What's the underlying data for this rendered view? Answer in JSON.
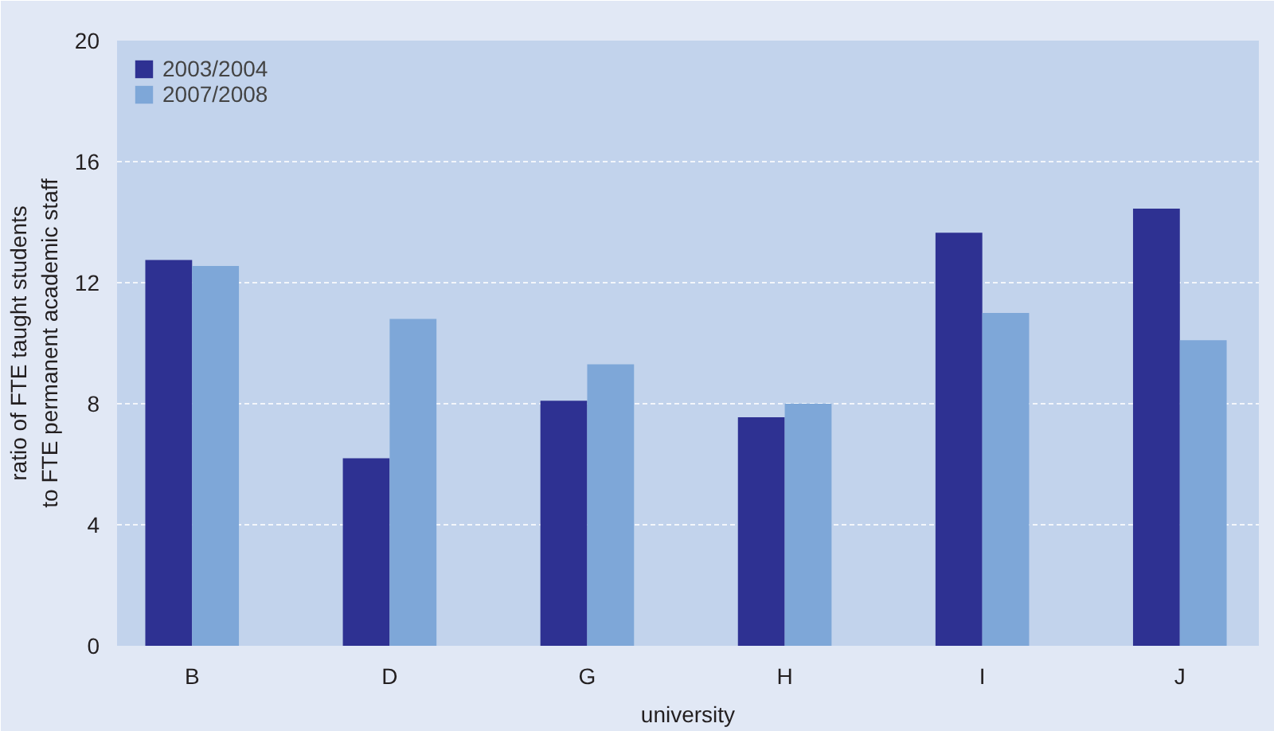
{
  "chart_data": {
    "type": "bar",
    "xlabel": "university",
    "ylabel": "ratio of FTE taught students to FTE permanent academic staff",
    "categories": [
      "B",
      "D",
      "G",
      "H",
      "I",
      "J"
    ],
    "series": [
      {
        "name": "2003/2004",
        "color": "#2e3192",
        "values": [
          12.75,
          6.2,
          8.1,
          7.55,
          13.65,
          14.45
        ]
      },
      {
        "name": "2007/2008",
        "color": "#7ea7d8",
        "values": [
          12.55,
          10.8,
          9.3,
          8.0,
          11.0,
          10.1
        ]
      }
    ],
    "ylim": [
      0,
      20
    ],
    "yticks": [
      0,
      4,
      8,
      12,
      16,
      20
    ],
    "grid": "y",
    "legend": "top left"
  }
}
